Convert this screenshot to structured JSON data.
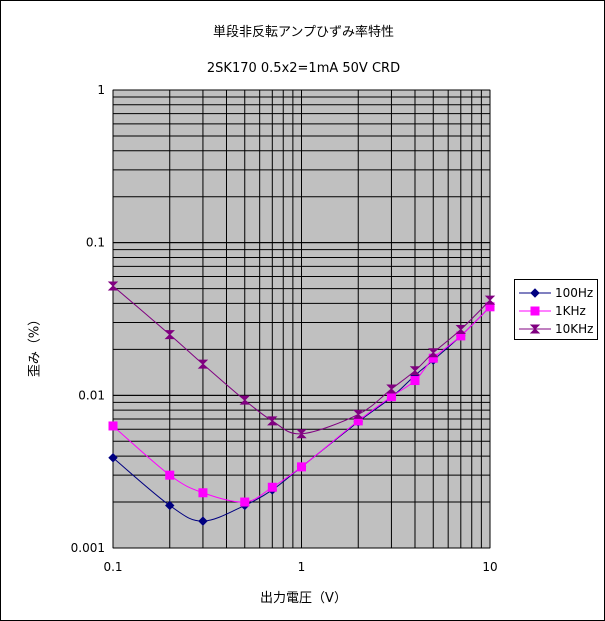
{
  "chart_data": {
    "type": "line",
    "title": "単段非反転アンプひずみ率特性",
    "subtitle": "2SK170 0.5x2=1mA 50V CRD",
    "xlabel": "出力電圧（V）",
    "ylabel": "歪み（%）",
    "x_scale": "log",
    "y_scale": "log",
    "xlim": [
      0.1,
      10
    ],
    "ylim": [
      0.001,
      1
    ],
    "x_ticks": [
      "0.1",
      "1",
      "10"
    ],
    "y_ticks": [
      "0.001",
      "0.01",
      "0.1",
      "1"
    ],
    "grid": true,
    "legend": "right",
    "series": [
      {
        "name": "100Hz",
        "color": "#000080",
        "marker": "diamond",
        "x": [
          0.1,
          0.2,
          0.3,
          0.5,
          0.7,
          1,
          2,
          3,
          4,
          5,
          7,
          10
        ],
        "y": [
          0.0039,
          0.0019,
          0.0015,
          0.0019,
          0.0024,
          0.0034,
          0.0067,
          0.0097,
          0.0135,
          0.017,
          0.0245,
          0.038
        ]
      },
      {
        "name": "1KHz",
        "color": "#ff00ff",
        "marker": "square",
        "x": [
          0.1,
          0.2,
          0.3,
          0.5,
          0.7,
          1,
          2,
          3,
          4,
          5,
          7,
          10
        ],
        "y": [
          0.0063,
          0.003,
          0.0023,
          0.002,
          0.0025,
          0.0034,
          0.0068,
          0.0098,
          0.0125,
          0.0175,
          0.0245,
          0.038
        ]
      },
      {
        "name": "10KHz",
        "color": "#800080",
        "marker": "bowtie",
        "x": [
          0.1,
          0.2,
          0.3,
          0.5,
          0.7,
          1,
          2,
          3,
          4,
          5,
          7,
          10
        ],
        "y": [
          0.052,
          0.025,
          0.016,
          0.0093,
          0.0068,
          0.0056,
          0.0075,
          0.011,
          0.0145,
          0.019,
          0.027,
          0.042
        ]
      }
    ]
  }
}
